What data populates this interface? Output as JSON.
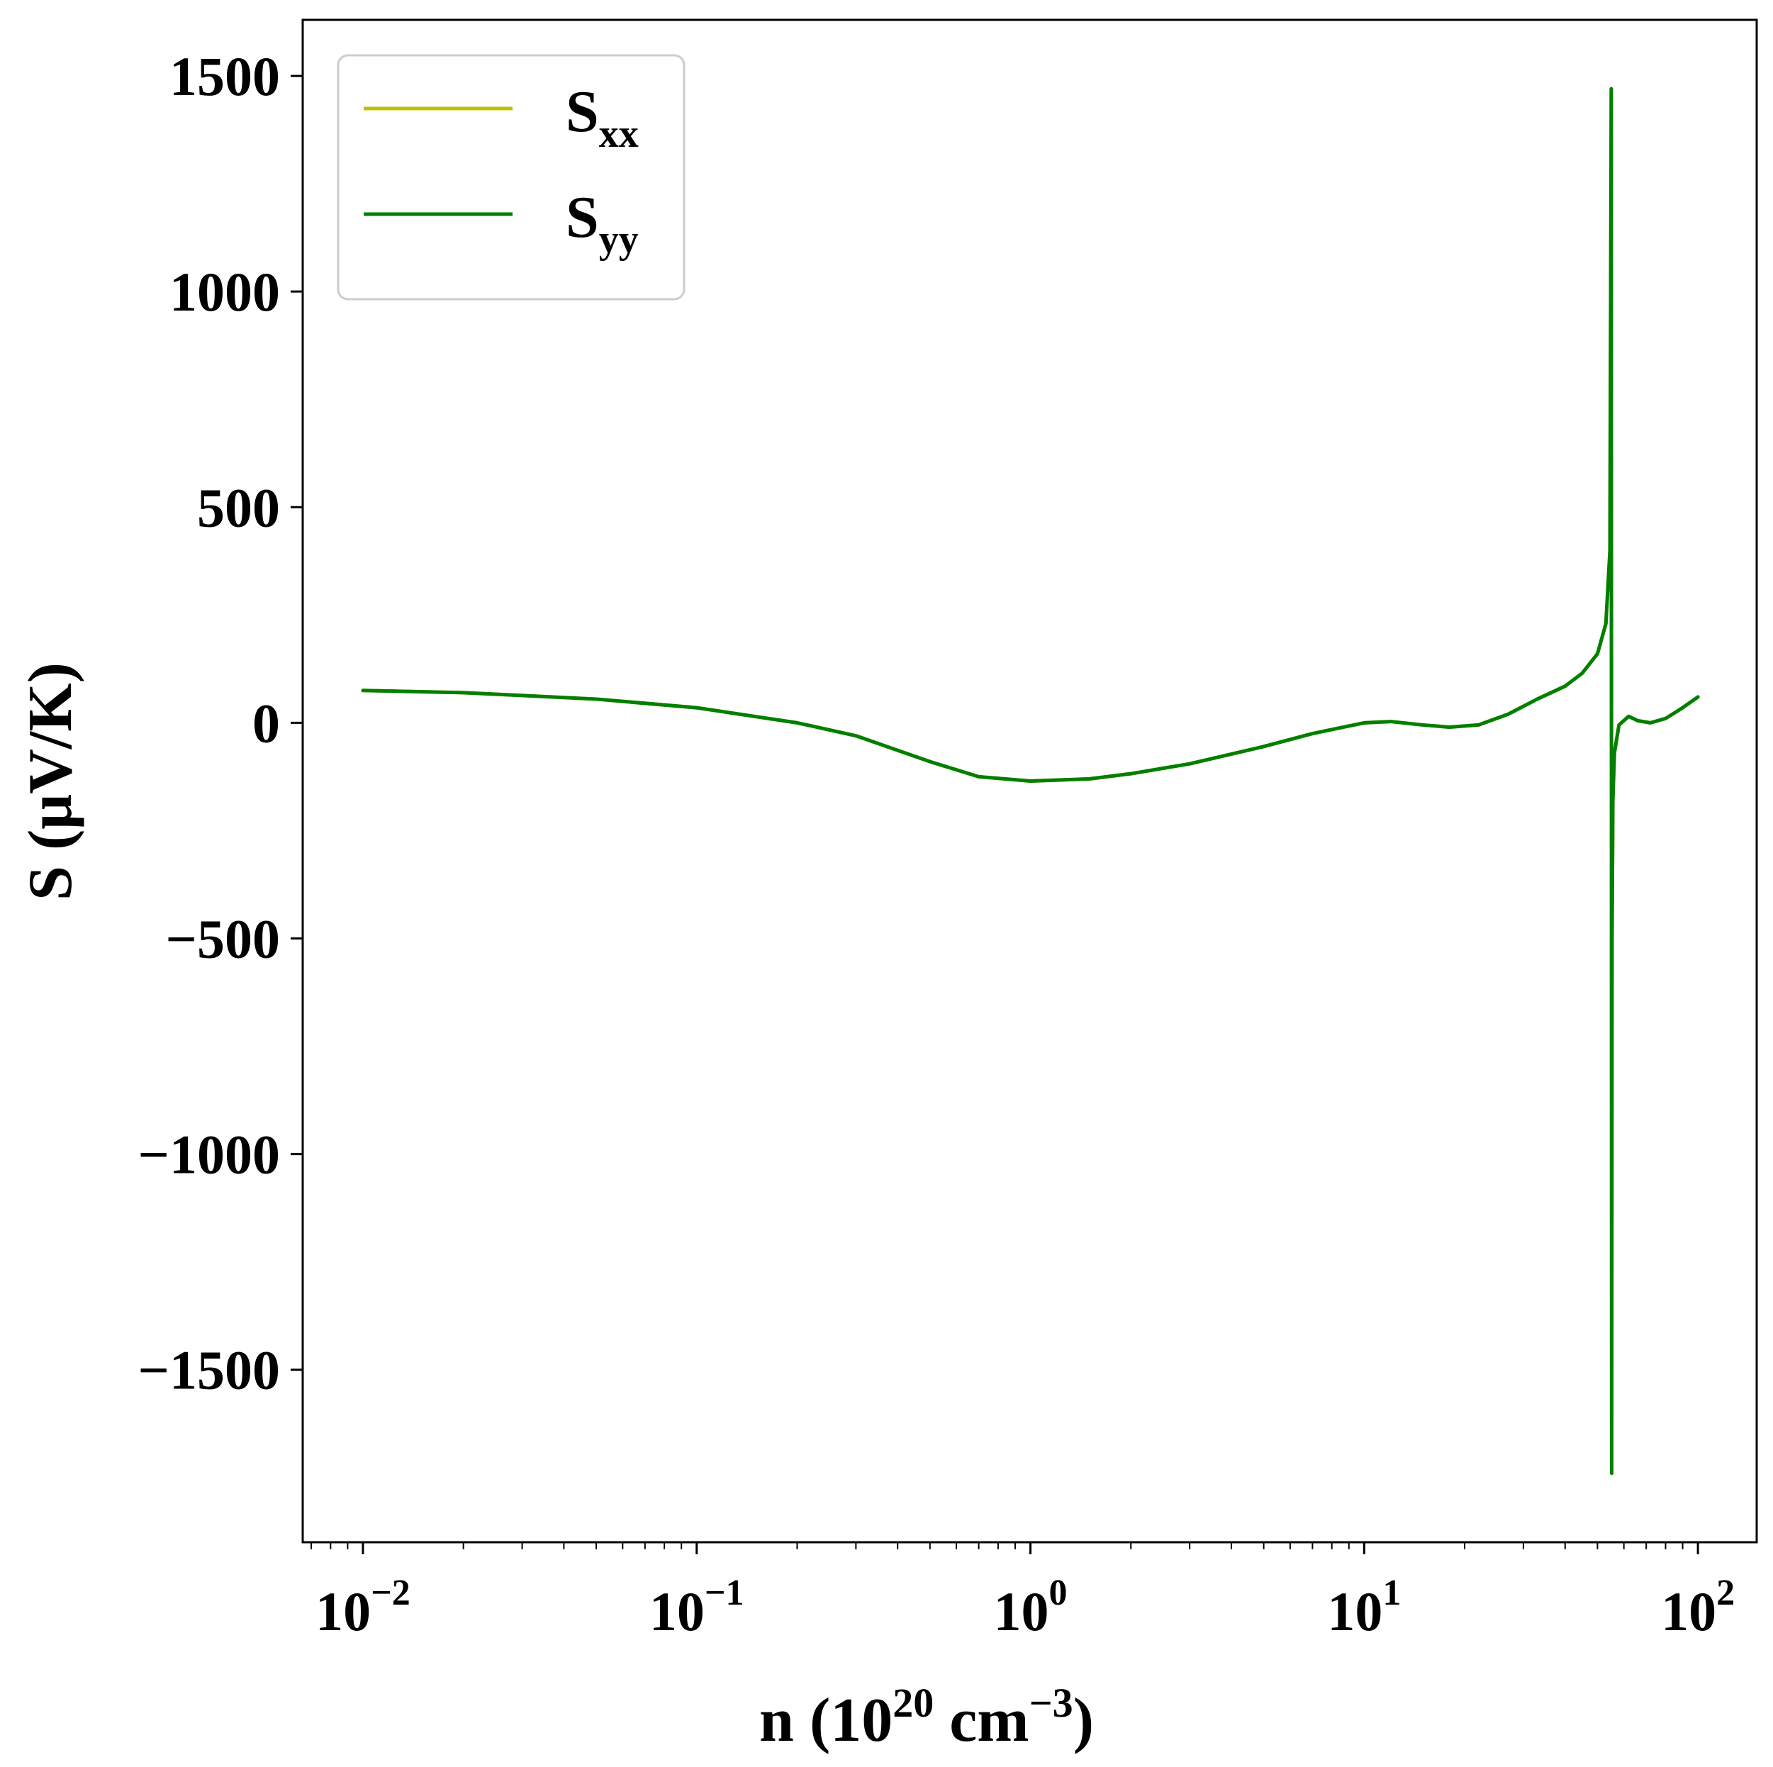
{
  "chart_data": {
    "type": "line",
    "xscale": "log",
    "xlim": [
      0.0066,
      150
    ],
    "ylim": [
      -1900,
      1630
    ],
    "grid": false,
    "legend_position": "top-left",
    "xlabel": {
      "base": "n (10",
      "sup1": "20",
      "mid": " cm",
      "sup2": "−3",
      "end": ")"
    },
    "ylabel": "S (μV/K)",
    "x_ticks": [
      {
        "value": 0.01,
        "base": "10",
        "exp": "−2"
      },
      {
        "value": 0.1,
        "base": "10",
        "exp": "−1"
      },
      {
        "value": 1,
        "base": "10",
        "exp": "0"
      },
      {
        "value": 10,
        "base": "10",
        "exp": "1"
      },
      {
        "value": 100,
        "base": "10",
        "exp": "2"
      }
    ],
    "y_ticks": [
      {
        "value": 1500,
        "label": "1500"
      },
      {
        "value": 1000,
        "label": "1000"
      },
      {
        "value": 500,
        "label": "500"
      },
      {
        "value": 0,
        "label": "0"
      },
      {
        "value": -500,
        "label": "−500"
      },
      {
        "value": -1000,
        "label": "−1000"
      },
      {
        "value": -1500,
        "label": "−1500"
      }
    ],
    "series": [
      {
        "name": "S_xx",
        "legend_main": "S",
        "legend_sub": "xx",
        "color": "#bfbf00",
        "x": [
          0.01,
          0.02,
          0.05,
          0.1,
          0.2,
          0.3,
          0.5,
          0.7,
          1.0,
          1.5,
          2,
          3,
          5,
          7,
          10,
          12,
          15,
          18,
          22,
          27,
          33,
          40,
          45,
          50,
          53,
          54.5,
          55.0,
          55.15,
          55.3,
          55.6,
          56.2,
          58,
          62,
          66,
          72,
          80,
          90,
          100
        ],
        "y": [
          75,
          70,
          55,
          35,
          0,
          -30,
          -90,
          -125,
          -135,
          -130,
          -118,
          -95,
          -55,
          -25,
          0,
          3,
          -5,
          -10,
          -5,
          20,
          55,
          85,
          115,
          160,
          230,
          400,
          1470,
          -1740,
          -500,
          -180,
          -70,
          -5,
          15,
          5,
          0,
          10,
          35,
          60
        ]
      },
      {
        "name": "S_yy",
        "legend_main": "S",
        "legend_sub": "yy",
        "color": "#007f00",
        "x": [
          0.01,
          0.02,
          0.05,
          0.1,
          0.2,
          0.3,
          0.5,
          0.7,
          1.0,
          1.5,
          2,
          3,
          5,
          7,
          10,
          12,
          15,
          18,
          22,
          27,
          33,
          40,
          45,
          50,
          53,
          54.5,
          55.0,
          55.15,
          55.3,
          55.6,
          56.2,
          58,
          62,
          66,
          72,
          80,
          90,
          100
        ],
        "y": [
          75,
          70,
          55,
          35,
          0,
          -30,
          -90,
          -125,
          -135,
          -130,
          -118,
          -95,
          -55,
          -25,
          0,
          3,
          -5,
          -10,
          -5,
          20,
          55,
          85,
          115,
          160,
          230,
          400,
          1470,
          -1740,
          -500,
          -180,
          -70,
          -5,
          15,
          5,
          0,
          10,
          35,
          60
        ]
      }
    ]
  }
}
